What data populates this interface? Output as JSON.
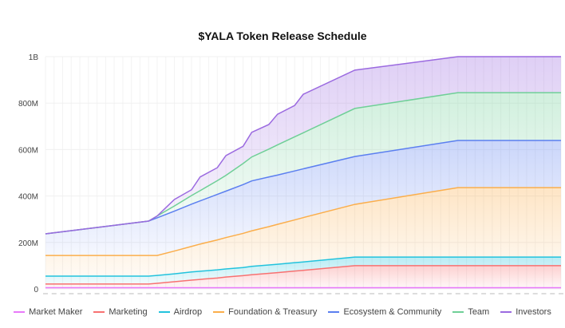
{
  "chart_data": {
    "type": "area",
    "stacked": true,
    "title": "$YALA Token Release Schedule",
    "xlabel": "",
    "ylabel": "",
    "x": [
      0,
      12,
      13,
      15,
      17,
      18,
      20,
      21,
      23,
      24,
      26,
      27,
      29,
      30,
      36,
      48,
      60
    ],
    "xlim": [
      0,
      60
    ],
    "ylim": [
      0,
      1000000000
    ],
    "yticks": [
      0,
      200000000,
      400000000,
      600000000,
      800000000,
      1000000000
    ],
    "ytick_labels": [
      "0",
      "200M",
      "400M",
      "600M",
      "800M",
      "1B"
    ],
    "value_unit": "M tokens",
    "grid": true,
    "legend_position": "bottom",
    "series": [
      {
        "name": "Market Maker",
        "color": "#e879f9",
        "values": [
          5,
          5,
          5,
          5,
          5,
          5,
          5,
          5,
          5,
          5,
          5,
          5,
          5,
          5,
          5,
          5,
          5
        ]
      },
      {
        "name": "Marketing",
        "color": "#f87171",
        "values": [
          16,
          16,
          19,
          26,
          33,
          36,
          42,
          46,
          52,
          56,
          62,
          65,
          72,
          75,
          95,
          95,
          95
        ]
      },
      {
        "name": "Airdrop",
        "color": "#22c3dd",
        "values": [
          34,
          34,
          34,
          34,
          35,
          35,
          35,
          35,
          35,
          36,
          36,
          36,
          36,
          36,
          37,
          37,
          37
        ]
      },
      {
        "name": "Foundation & Treasury",
        "color": "#fbae4b",
        "values": [
          89,
          89,
          86,
          98,
          110,
          117,
          129,
          135,
          147,
          153,
          165,
          172,
          184,
          191,
          227,
          299,
          299
        ]
      },
      {
        "name": "Ecosystem & Community",
        "color": "#5b7ff0",
        "values": [
          93,
          148,
          162,
          172,
          182,
          186,
          196,
          200,
          210,
          215,
          214,
          212,
          211,
          210,
          206,
          203,
          203
        ]
      },
      {
        "name": "Team",
        "color": "#6fcf97",
        "values": [
          0,
          0,
          8,
          22,
          37,
          44,
          59,
          68,
          91,
          103,
          120,
          130,
          147,
          155,
          207,
          206,
          206
        ]
      },
      {
        "name": "Investors",
        "color": "#9b6ae0",
        "values": [
          0,
          0,
          0,
          28,
          25,
          59,
          56,
          85,
          74,
          106,
          106,
          132,
          135,
          166,
          165,
          155,
          155
        ]
      }
    ]
  }
}
